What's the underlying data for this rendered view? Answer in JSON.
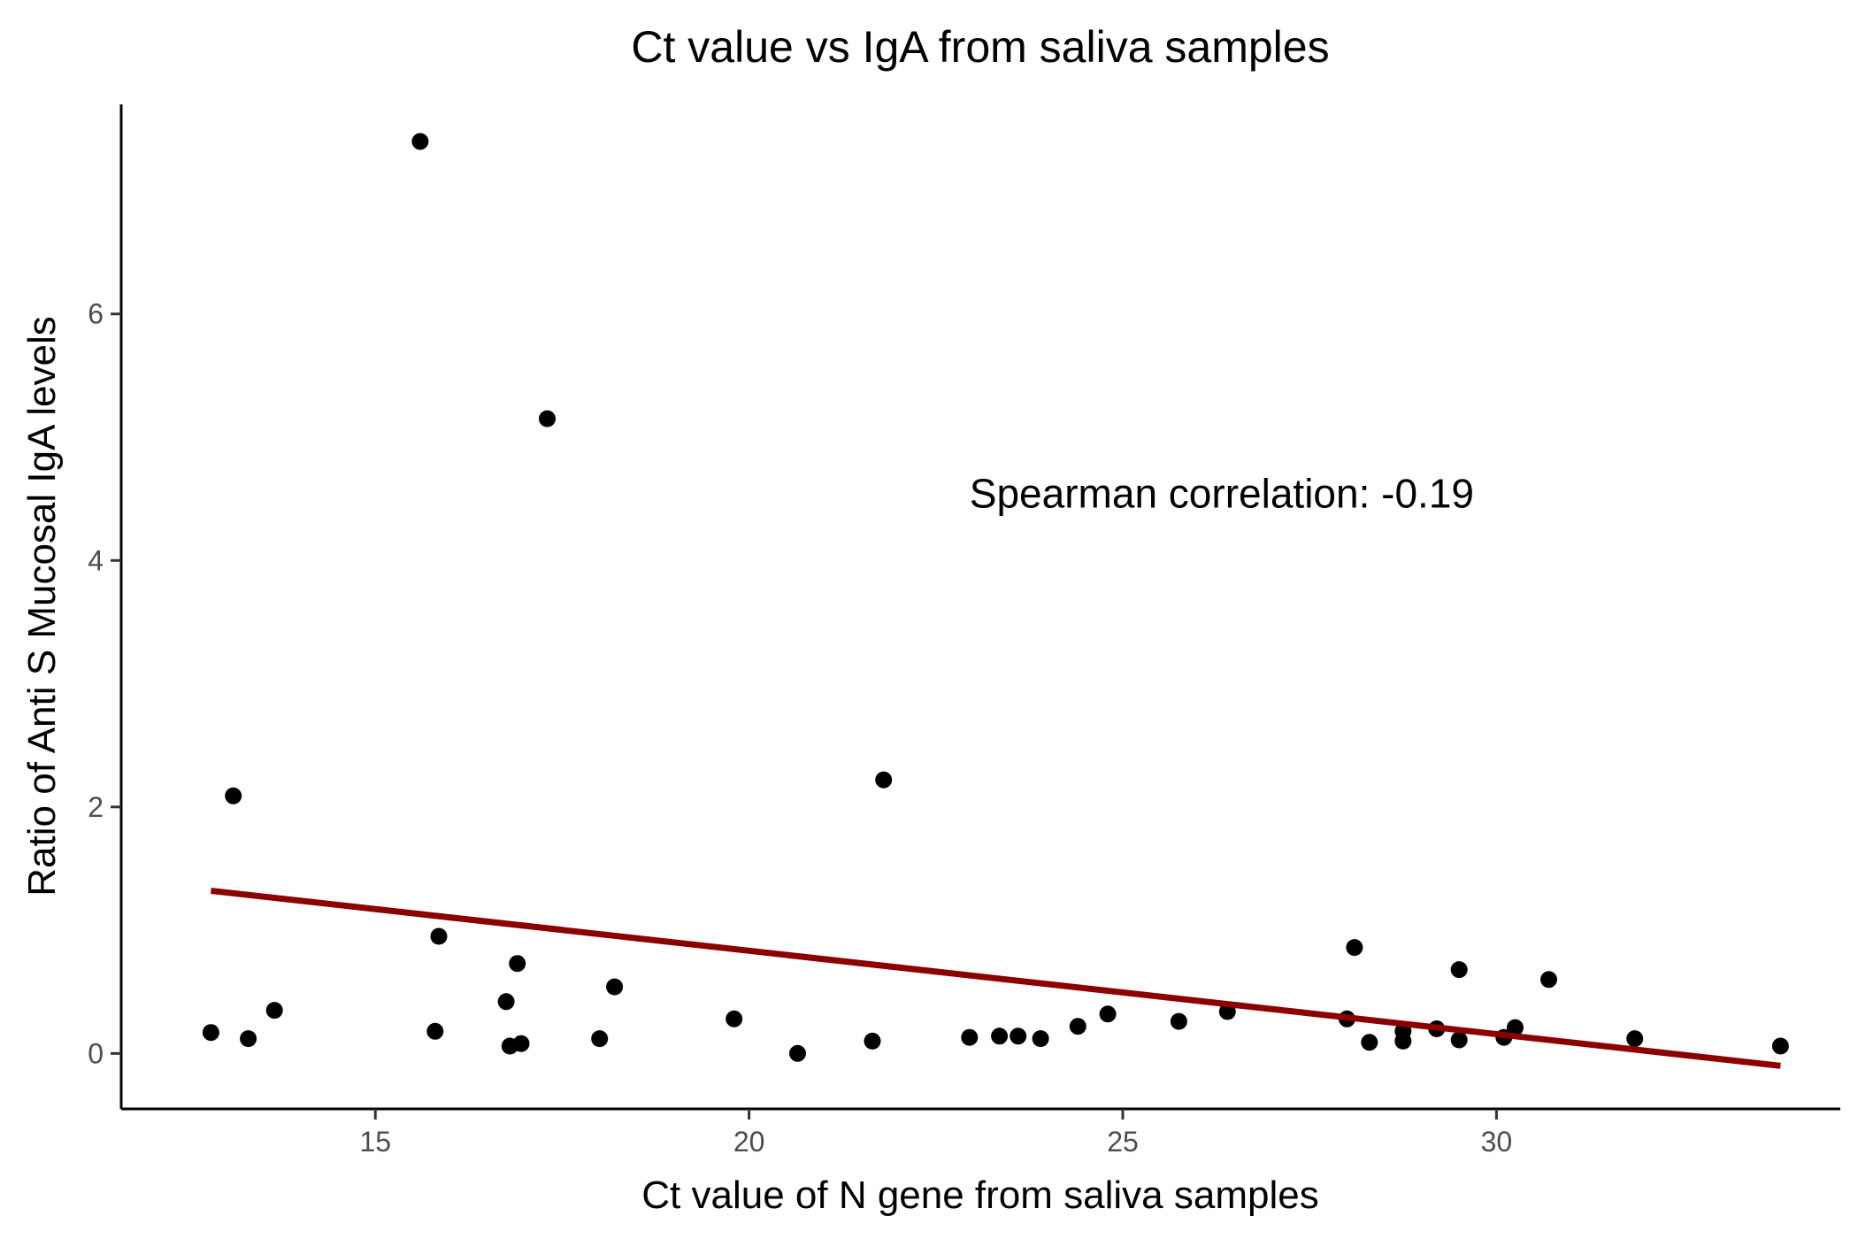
{
  "chart_data": {
    "type": "scatter",
    "title": "Ct value vs IgA from saliva samples",
    "xlabel": "Ct value of N gene from saliva samples",
    "ylabel": "Ratio of Anti S Mucosal IgA levels",
    "xlim": [
      11.6,
      34.6
    ],
    "ylim": [
      -0.45,
      7.7
    ],
    "x_ticks": [
      15,
      20,
      25,
      30
    ],
    "y_ticks": [
      0,
      2,
      4,
      6
    ],
    "grid": false,
    "legend": "none",
    "point_color": "#000000",
    "trendline": {
      "type": "linear",
      "color": "#8b0000",
      "x": [
        12.8,
        33.8
      ],
      "y": [
        1.32,
        -0.1
      ]
    },
    "annotation": {
      "text": "Spearman correlation:  -0.19",
      "x": 22.95,
      "y": 4.43
    },
    "series": [
      {
        "x": [
          15.6,
          17.3,
          21.8,
          13.1,
          15.85,
          16.9,
          28.1,
          29.5,
          30.7,
          12.8,
          13.3,
          13.65,
          15.8,
          16.75,
          16.8,
          16.95,
          18.0,
          18.2,
          19.8,
          20.65,
          21.65,
          22.95,
          23.35,
          23.6,
          23.9,
          24.4,
          24.8,
          25.75,
          26.4,
          28.0,
          28.3,
          28.75,
          28.75,
          29.2,
          29.5,
          30.1,
          30.25,
          31.85,
          33.8
        ],
        "y": [
          7.4,
          5.15,
          2.22,
          2.09,
          0.95,
          0.73,
          0.86,
          0.68,
          0.6,
          0.17,
          0.12,
          0.35,
          0.18,
          0.42,
          0.06,
          0.08,
          0.12,
          0.54,
          0.28,
          0.0,
          0.1,
          0.13,
          0.14,
          0.14,
          0.12,
          0.22,
          0.32,
          0.26,
          0.34,
          0.28,
          0.09,
          0.18,
          0.1,
          0.2,
          0.11,
          0.13,
          0.21,
          0.12,
          0.06
        ]
      }
    ]
  }
}
